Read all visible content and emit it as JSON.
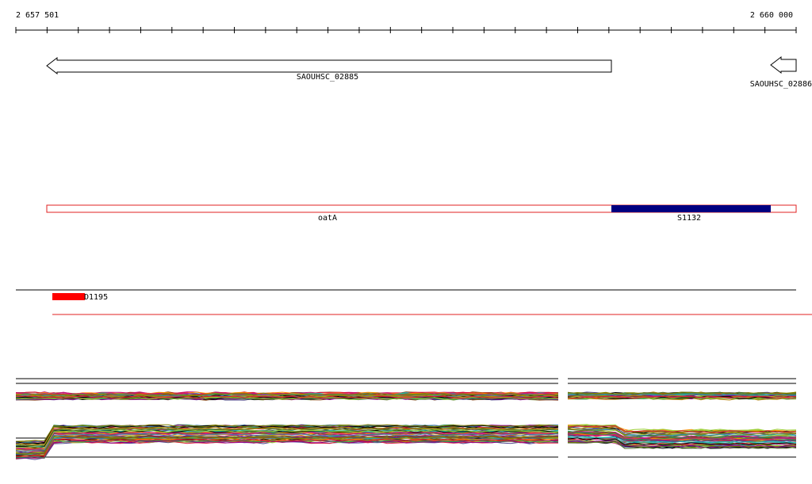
{
  "ruler": {
    "start_label": "2 657 501",
    "end_label": "2 660 000"
  },
  "genes": [
    {
      "label": "SAOUHSC_02885"
    },
    {
      "label": "SAOUHSC_02886"
    }
  ],
  "features": [
    {
      "label": "oatA"
    },
    {
      "label": "S1132"
    }
  ],
  "peaks": [
    {
      "label": "D1195"
    }
  ]
}
